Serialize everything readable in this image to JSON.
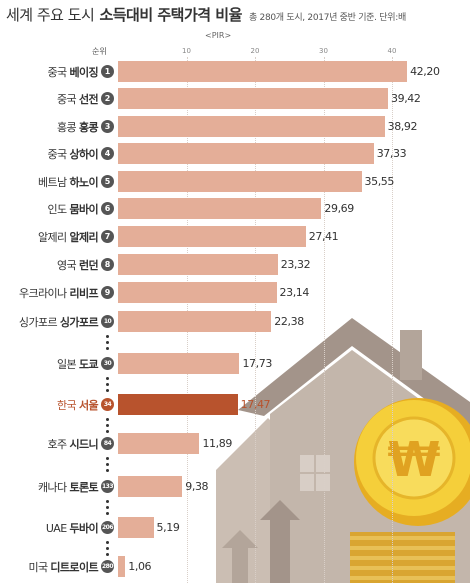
{
  "header": {
    "title_part1": "세계 주요 도시",
    "title_part2": "소득대비 주택가격 비율",
    "note": "총 280개 도시, 2017년 중반 기준. 단위:배",
    "axis_title": "<PIR>",
    "rank_header": "순위"
  },
  "chart_data": {
    "type": "bar",
    "orientation": "horizontal",
    "title": "소득대비 주택가격 비율",
    "unit": "배",
    "axis_title": "PIR",
    "xlim": [
      0,
      45
    ],
    "ticks": [
      10,
      20,
      30,
      40
    ],
    "grid": true,
    "highlight_color": "#b8532d",
    "bar_color": "#e4ae98",
    "rows": [
      {
        "country": "중국",
        "city": "베이징",
        "rank": "1",
        "value": 42.2,
        "value_label": "42,20"
      },
      {
        "country": "중국",
        "city": "선전",
        "rank": "2",
        "value": 39.42,
        "value_label": "39,42"
      },
      {
        "country": "홍콩",
        "city": "홍콩",
        "rank": "3",
        "value": 38.92,
        "value_label": "38,92"
      },
      {
        "country": "중국",
        "city": "상하이",
        "rank": "4",
        "value": 37.33,
        "value_label": "37,33"
      },
      {
        "country": "베트남",
        "city": "하노이",
        "rank": "5",
        "value": 35.55,
        "value_label": "35,55"
      },
      {
        "country": "인도",
        "city": "뭄바이",
        "rank": "6",
        "value": 29.69,
        "value_label": "29,69"
      },
      {
        "country": "알제리",
        "city": "알제리",
        "rank": "7",
        "value": 27.41,
        "value_label": "27,41"
      },
      {
        "country": "영국",
        "city": "런던",
        "rank": "8",
        "value": 23.32,
        "value_label": "23,32"
      },
      {
        "country": "우크라이나",
        "city": "리비프",
        "rank": "9",
        "value": 23.14,
        "value_label": "23,14"
      },
      {
        "country": "싱가포르",
        "city": "싱가포르",
        "rank": "10",
        "value": 22.38,
        "value_label": "22,38"
      },
      {
        "country": "일본",
        "city": "도쿄",
        "rank": "30",
        "value": 17.73,
        "value_label": "17,73"
      },
      {
        "country": "한국",
        "city": "서울",
        "rank": "34",
        "value": 17.47,
        "value_label": "17,47",
        "highlight": true
      },
      {
        "country": "호주",
        "city": "시드니",
        "rank": "84",
        "value": 11.89,
        "value_label": "11,89"
      },
      {
        "country": "캐나다",
        "city": "토론토",
        "rank": "133",
        "value": 9.38,
        "value_label": "9,38"
      },
      {
        "country": "UAE",
        "city": "두바이",
        "rank": "206",
        "value": 5.19,
        "value_label": "5,19"
      },
      {
        "country": "미국",
        "city": "디트로이트",
        "rank": "280",
        "value": 1.06,
        "value_label": "1,06"
      }
    ]
  },
  "decoration": {
    "illustration": "house-and-won-coin",
    "coin_symbol": "₩"
  }
}
